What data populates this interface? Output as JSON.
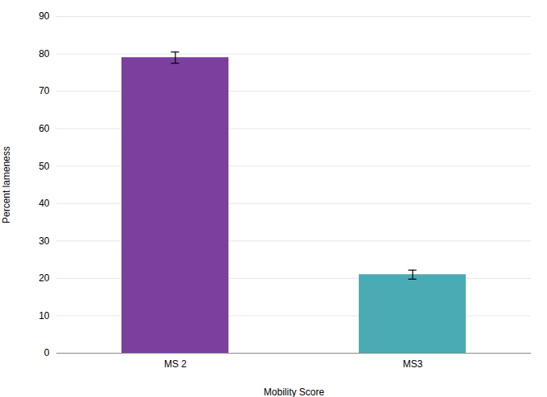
{
  "chart_data": {
    "type": "bar",
    "categories": [
      "MS 2",
      "MS3"
    ],
    "values": [
      79.0,
      21.0
    ],
    "errors": [
      1.5,
      1.2
    ],
    "colors": [
      "#7B3F9E",
      "#4AABB5"
    ],
    "xlabel": "Mobility Score",
    "ylabel": "Percent lameness",
    "ylim": [
      0,
      90
    ],
    "yticks": [
      0,
      10,
      20,
      30,
      40,
      50,
      60,
      70,
      80,
      90
    ],
    "grid": true
  }
}
